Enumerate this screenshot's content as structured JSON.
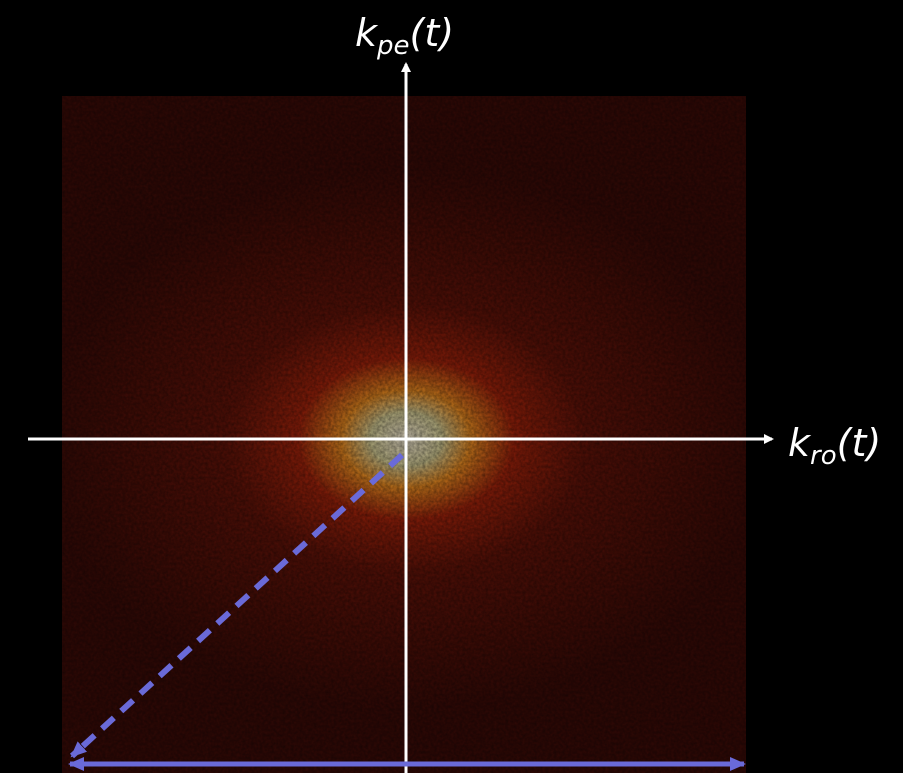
{
  "labels": {
    "vertical_axis": {
      "base": "k",
      "subscript": "pe",
      "suffix": "(t)"
    },
    "horizontal_axis": {
      "base": "k",
      "subscript": "ro",
      "suffix": "(t)"
    }
  }
}
